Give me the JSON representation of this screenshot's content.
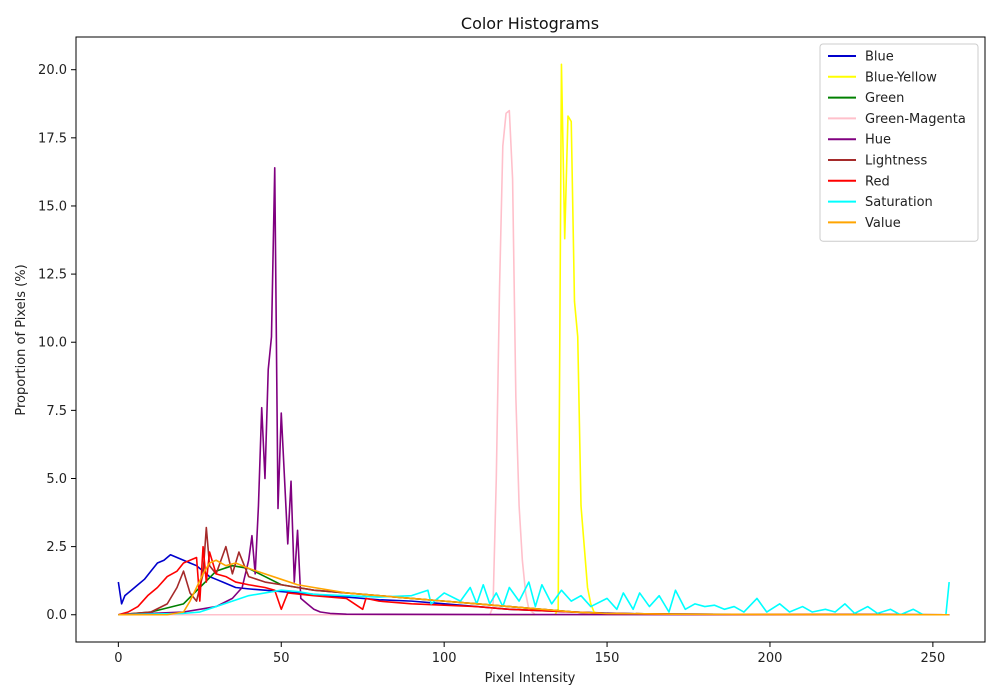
{
  "chart_data": {
    "type": "line",
    "title": "Color Histograms",
    "xlabel": "Pixel Intensity",
    "ylabel": "Proportion of Pixels (%)",
    "xlim": [
      -13,
      266
    ],
    "ylim": [
      -1.0,
      21.2
    ],
    "x_ticks": [
      0,
      50,
      100,
      150,
      200,
      250
    ],
    "y_ticks": [
      0.0,
      2.5,
      5.0,
      7.5,
      10.0,
      12.5,
      15.0,
      17.5,
      20.0
    ],
    "y_tick_labels": [
      "0.0",
      "2.5",
      "5.0",
      "7.5",
      "10.0",
      "12.5",
      "15.0",
      "17.5",
      "20.0"
    ],
    "grid": false,
    "legend_position": "top-right",
    "series": [
      {
        "name": "Blue",
        "color": "#0000cc",
        "points": [
          [
            0,
            1.2
          ],
          [
            1,
            0.4
          ],
          [
            2,
            0.7
          ],
          [
            4,
            0.9
          ],
          [
            6,
            1.1
          ],
          [
            8,
            1.3
          ],
          [
            10,
            1.6
          ],
          [
            12,
            1.9
          ],
          [
            14,
            2.0
          ],
          [
            16,
            2.2
          ],
          [
            18,
            2.1
          ],
          [
            20,
            2.0
          ],
          [
            22,
            1.9
          ],
          [
            24,
            1.8
          ],
          [
            26,
            1.6
          ],
          [
            28,
            1.4
          ],
          [
            30,
            1.3
          ],
          [
            32,
            1.2
          ],
          [
            34,
            1.1
          ],
          [
            36,
            1.0
          ],
          [
            40,
            0.95
          ],
          [
            45,
            0.9
          ],
          [
            50,
            0.85
          ],
          [
            55,
            0.8
          ],
          [
            60,
            0.75
          ],
          [
            65,
            0.7
          ],
          [
            70,
            0.65
          ],
          [
            80,
            0.55
          ],
          [
            90,
            0.5
          ],
          [
            100,
            0.4
          ],
          [
            110,
            0.3
          ],
          [
            120,
            0.2
          ],
          [
            130,
            0.15
          ],
          [
            140,
            0.1
          ],
          [
            150,
            0.06
          ],
          [
            160,
            0.03
          ],
          [
            180,
            0.02
          ],
          [
            200,
            0.01
          ],
          [
            220,
            0.01
          ],
          [
            240,
            0.0
          ],
          [
            255,
            0.0
          ]
        ]
      },
      {
        "name": "Blue-Yellow",
        "color": "#ffff00",
        "points": [
          [
            0,
            0
          ],
          [
            134,
            0
          ],
          [
            135,
            0.2
          ],
          [
            136,
            20.2
          ],
          [
            137,
            13.8
          ],
          [
            138,
            18.3
          ],
          [
            139,
            18.1
          ],
          [
            140,
            11.5
          ],
          [
            141,
            10.2
          ],
          [
            142,
            4.0
          ],
          [
            143,
            2.5
          ],
          [
            144,
            1.0
          ],
          [
            145,
            0.4
          ],
          [
            146,
            0.1
          ],
          [
            148,
            0
          ],
          [
            255,
            0
          ]
        ]
      },
      {
        "name": "Green",
        "color": "#008000",
        "points": [
          [
            0,
            0
          ],
          [
            10,
            0.1
          ],
          [
            20,
            0.4
          ],
          [
            25,
            1.0
          ],
          [
            30,
            1.6
          ],
          [
            35,
            1.8
          ],
          [
            40,
            1.7
          ],
          [
            45,
            1.4
          ],
          [
            50,
            1.1
          ],
          [
            60,
            0.9
          ],
          [
            70,
            0.8
          ],
          [
            80,
            0.7
          ],
          [
            90,
            0.6
          ],
          [
            100,
            0.5
          ],
          [
            110,
            0.4
          ],
          [
            120,
            0.3
          ],
          [
            130,
            0.2
          ],
          [
            140,
            0.1
          ],
          [
            150,
            0.05
          ],
          [
            170,
            0.02
          ],
          [
            200,
            0.01
          ],
          [
            255,
            0
          ]
        ]
      },
      {
        "name": "Green-Magenta",
        "color": "#ffc0cb",
        "points": [
          [
            0,
            0
          ],
          [
            114,
            0
          ],
          [
            115,
            0.3
          ],
          [
            116,
            5.0
          ],
          [
            117,
            12.0
          ],
          [
            118,
            17.2
          ],
          [
            119,
            18.4
          ],
          [
            120,
            18.5
          ],
          [
            121,
            16.0
          ],
          [
            122,
            8.0
          ],
          [
            123,
            4.0
          ],
          [
            124,
            2.0
          ],
          [
            125,
            0.8
          ],
          [
            126,
            0.2
          ],
          [
            128,
            0
          ],
          [
            255,
            0
          ]
        ]
      },
      {
        "name": "Hue",
        "color": "#800080",
        "points": [
          [
            0,
            0
          ],
          [
            10,
            0.05
          ],
          [
            20,
            0.1
          ],
          [
            25,
            0.2
          ],
          [
            30,
            0.3
          ],
          [
            35,
            0.6
          ],
          [
            38,
            1.0
          ],
          [
            40,
            2.0
          ],
          [
            41,
            2.9
          ],
          [
            42,
            1.5
          ],
          [
            43,
            4.0
          ],
          [
            44,
            7.6
          ],
          [
            45,
            5.0
          ],
          [
            46,
            9.0
          ],
          [
            47,
            10.2
          ],
          [
            48,
            16.4
          ],
          [
            49,
            3.9
          ],
          [
            50,
            7.4
          ],
          [
            51,
            5.0
          ],
          [
            52,
            2.6
          ],
          [
            53,
            4.9
          ],
          [
            54,
            1.2
          ],
          [
            55,
            3.1
          ],
          [
            56,
            0.6
          ],
          [
            58,
            0.4
          ],
          [
            60,
            0.2
          ],
          [
            62,
            0.1
          ],
          [
            65,
            0.05
          ],
          [
            70,
            0.02
          ],
          [
            100,
            0.01
          ],
          [
            255,
            0
          ]
        ]
      },
      {
        "name": "Lightness",
        "color": "#a52a2a",
        "points": [
          [
            0,
            0
          ],
          [
            10,
            0.1
          ],
          [
            15,
            0.4
          ],
          [
            18,
            1.0
          ],
          [
            20,
            1.6
          ],
          [
            22,
            0.8
          ],
          [
            24,
            0.5
          ],
          [
            26,
            1.5
          ],
          [
            27,
            3.2
          ],
          [
            28,
            1.8
          ],
          [
            30,
            1.5
          ],
          [
            33,
            2.5
          ],
          [
            35,
            1.5
          ],
          [
            37,
            2.3
          ],
          [
            40,
            1.4
          ],
          [
            45,
            1.2
          ],
          [
            50,
            1.1
          ],
          [
            55,
            1.0
          ],
          [
            60,
            0.9
          ],
          [
            70,
            0.8
          ],
          [
            80,
            0.7
          ],
          [
            90,
            0.6
          ],
          [
            100,
            0.5
          ],
          [
            110,
            0.4
          ],
          [
            120,
            0.3
          ],
          [
            130,
            0.2
          ],
          [
            140,
            0.1
          ],
          [
            150,
            0.05
          ],
          [
            170,
            0.02
          ],
          [
            200,
            0.01
          ],
          [
            255,
            0
          ]
        ]
      },
      {
        "name": "Red",
        "color": "#ff0000",
        "points": [
          [
            0,
            0
          ],
          [
            3,
            0.1
          ],
          [
            6,
            0.3
          ],
          [
            9,
            0.7
          ],
          [
            12,
            1.0
          ],
          [
            15,
            1.4
          ],
          [
            18,
            1.6
          ],
          [
            20,
            1.9
          ],
          [
            22,
            2.0
          ],
          [
            24,
            2.1
          ],
          [
            25,
            0.5
          ],
          [
            26,
            2.5
          ],
          [
            27,
            1.2
          ],
          [
            28,
            2.3
          ],
          [
            30,
            1.5
          ],
          [
            33,
            1.4
          ],
          [
            36,
            1.2
          ],
          [
            40,
            1.1
          ],
          [
            45,
            1.0
          ],
          [
            48,
            0.9
          ],
          [
            50,
            0.2
          ],
          [
            52,
            0.8
          ],
          [
            60,
            0.7
          ],
          [
            70,
            0.6
          ],
          [
            75,
            0.2
          ],
          [
            76,
            0.6
          ],
          [
            80,
            0.5
          ],
          [
            90,
            0.4
          ],
          [
            100,
            0.35
          ],
          [
            110,
            0.3
          ],
          [
            120,
            0.2
          ],
          [
            130,
            0.15
          ],
          [
            140,
            0.1
          ],
          [
            150,
            0.05
          ],
          [
            170,
            0.02
          ],
          [
            200,
            0.01
          ],
          [
            255,
            0
          ]
        ]
      },
      {
        "name": "Saturation",
        "color": "#00ffff",
        "points": [
          [
            0,
            0
          ],
          [
            20,
            0.05
          ],
          [
            25,
            0.1
          ],
          [
            30,
            0.3
          ],
          [
            35,
            0.5
          ],
          [
            40,
            0.7
          ],
          [
            45,
            0.8
          ],
          [
            50,
            0.9
          ],
          [
            55,
            0.85
          ],
          [
            60,
            0.75
          ],
          [
            70,
            0.7
          ],
          [
            80,
            0.65
          ],
          [
            90,
            0.7
          ],
          [
            95,
            0.9
          ],
          [
            96,
            0.4
          ],
          [
            100,
            0.8
          ],
          [
            105,
            0.5
          ],
          [
            108,
            1.0
          ],
          [
            110,
            0.4
          ],
          [
            112,
            1.1
          ],
          [
            114,
            0.4
          ],
          [
            116,
            0.8
          ],
          [
            118,
            0.3
          ],
          [
            120,
            1.0
          ],
          [
            123,
            0.5
          ],
          [
            126,
            1.2
          ],
          [
            128,
            0.3
          ],
          [
            130,
            1.1
          ],
          [
            133,
            0.4
          ],
          [
            136,
            0.9
          ],
          [
            139,
            0.5
          ],
          [
            142,
            0.7
          ],
          [
            145,
            0.3
          ],
          [
            150,
            0.6
          ],
          [
            153,
            0.2
          ],
          [
            155,
            0.8
          ],
          [
            158,
            0.2
          ],
          [
            160,
            0.8
          ],
          [
            163,
            0.3
          ],
          [
            166,
            0.7
          ],
          [
            169,
            0.1
          ],
          [
            171,
            0.9
          ],
          [
            174,
            0.2
          ],
          [
            177,
            0.4
          ],
          [
            180,
            0.3
          ],
          [
            183,
            0.35
          ],
          [
            186,
            0.2
          ],
          [
            189,
            0.3
          ],
          [
            192,
            0.1
          ],
          [
            196,
            0.6
          ],
          [
            199,
            0.1
          ],
          [
            203,
            0.4
          ],
          [
            206,
            0.1
          ],
          [
            210,
            0.3
          ],
          [
            213,
            0.1
          ],
          [
            217,
            0.2
          ],
          [
            220,
            0.1
          ],
          [
            223,
            0.4
          ],
          [
            226,
            0.05
          ],
          [
            230,
            0.3
          ],
          [
            233,
            0.05
          ],
          [
            237,
            0.2
          ],
          [
            240,
            0.0
          ],
          [
            244,
            0.2
          ],
          [
            247,
            0.0
          ],
          [
            254,
            0.0
          ],
          [
            255,
            1.2
          ]
        ]
      },
      {
        "name": "Value",
        "color": "#ffa500",
        "points": [
          [
            0,
            0
          ],
          [
            15,
            0.0
          ],
          [
            20,
            0.1
          ],
          [
            22,
            0.5
          ],
          [
            24,
            1.0
          ],
          [
            26,
            1.5
          ],
          [
            28,
            1.9
          ],
          [
            30,
            2.0
          ],
          [
            33,
            1.8
          ],
          [
            36,
            1.9
          ],
          [
            40,
            1.7
          ],
          [
            45,
            1.5
          ],
          [
            50,
            1.3
          ],
          [
            55,
            1.1
          ],
          [
            60,
            1.0
          ],
          [
            70,
            0.8
          ],
          [
            80,
            0.7
          ],
          [
            90,
            0.6
          ],
          [
            100,
            0.5
          ],
          [
            110,
            0.4
          ],
          [
            120,
            0.3
          ],
          [
            130,
            0.2
          ],
          [
            140,
            0.1
          ],
          [
            150,
            0.05
          ],
          [
            170,
            0.02
          ],
          [
            200,
            0.01
          ],
          [
            255,
            0
          ]
        ]
      }
    ]
  }
}
